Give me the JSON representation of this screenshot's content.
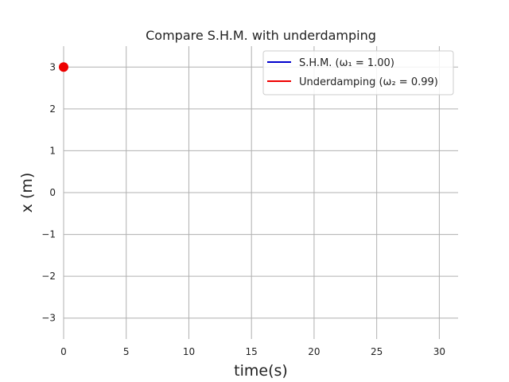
{
  "chart_data": {
    "type": "line",
    "title": "Compare S.H.M. with underdamping",
    "xlabel": "time(s)",
    "ylabel": "x (m)",
    "xlim": [
      0,
      31.5
    ],
    "ylim": [
      -3.5,
      3.5
    ],
    "xticks": [
      0,
      5,
      10,
      15,
      20,
      25,
      30
    ],
    "yticks": [
      -3,
      -2,
      -1,
      0,
      1,
      2,
      3
    ],
    "xtick_labels": [
      "0",
      "5",
      "10",
      "15",
      "20",
      "25",
      "30"
    ],
    "ytick_labels": [
      "−3",
      "−2",
      "−1",
      "0",
      "1",
      "2",
      "3"
    ],
    "grid": true,
    "legend_position": "top-right",
    "series": [
      {
        "name": "S.H.M. (ω₁ = 1.00)",
        "color": "#0000cc",
        "x": [],
        "y": []
      },
      {
        "name": "Underdamping (ω₂ = 0.99)",
        "color": "#ee0000",
        "x": [],
        "y": []
      }
    ],
    "markers": [
      {
        "x": 0,
        "y": 3,
        "color": "#ee0000"
      }
    ]
  }
}
